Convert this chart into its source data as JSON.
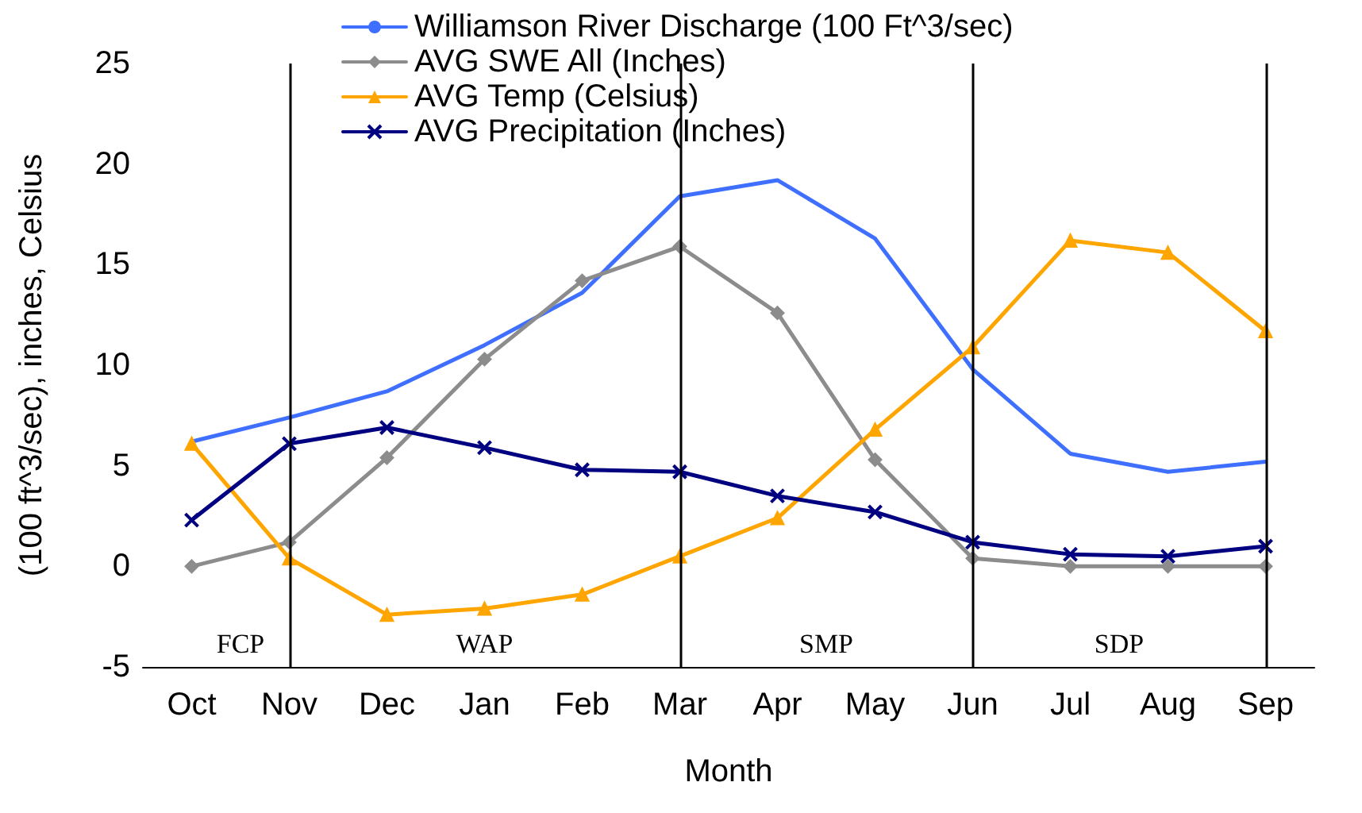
{
  "chart_data": {
    "type": "line",
    "xlabel": "Month",
    "ylabel": "(100 ft^3/sec), inches, Celsius",
    "categories": [
      "Oct",
      "Nov",
      "Dec",
      "Jan",
      "Feb",
      "Mar",
      "Apr",
      "May",
      "Jun",
      "Jul",
      "Aug",
      "Sep"
    ],
    "series": [
      {
        "name": "Williamson River Discharge (100 Ft^3/sec)",
        "color": "#3f6fff",
        "marker": "none",
        "values": [
          6.2,
          7.4,
          8.7,
          11,
          13.6,
          18.4,
          19.2,
          16.3,
          9.8,
          5.6,
          4.7,
          5.2
        ]
      },
      {
        "name": "AVG SWE All (Inches)",
        "color": "#8c8c8c",
        "marker": "diamond",
        "values": [
          0,
          1.2,
          5.4,
          10.3,
          14.2,
          15.9,
          12.6,
          5.3,
          0.4,
          0,
          0,
          0
        ]
      },
      {
        "name": "AVG Temp (Celsius)",
        "color": "#ffa500",
        "marker": "triangle",
        "values": [
          6.1,
          0.4,
          -2.4,
          -2.1,
          -1.4,
          0.5,
          2.4,
          6.8,
          10.9,
          16.2,
          15.6,
          11.7
        ]
      },
      {
        "name": "AVG Precipitation (Inches)",
        "color": "#000080",
        "marker": "cross",
        "values": [
          2.3,
          6.1,
          6.9,
          5.9,
          4.8,
          4.7,
          3.5,
          2.7,
          1.2,
          0.6,
          0.5,
          1.0
        ]
      }
    ],
    "ylim": [
      -5,
      25
    ],
    "yticks": [
      -5,
      0,
      5,
      10,
      15,
      20,
      25
    ],
    "grid": false,
    "legend": "top",
    "ref_lines": [
      {
        "axis": "x",
        "value": "Nov",
        "color": "#000000"
      },
      {
        "axis": "x",
        "value": "Mar",
        "color": "#000000"
      },
      {
        "axis": "x",
        "value": "Jun",
        "color": "#000000"
      },
      {
        "axis": "x",
        "value": "Sep",
        "color": "#000000"
      }
    ],
    "annotations": [
      "FCP",
      "WAP",
      "SMP",
      "SDP"
    ]
  }
}
